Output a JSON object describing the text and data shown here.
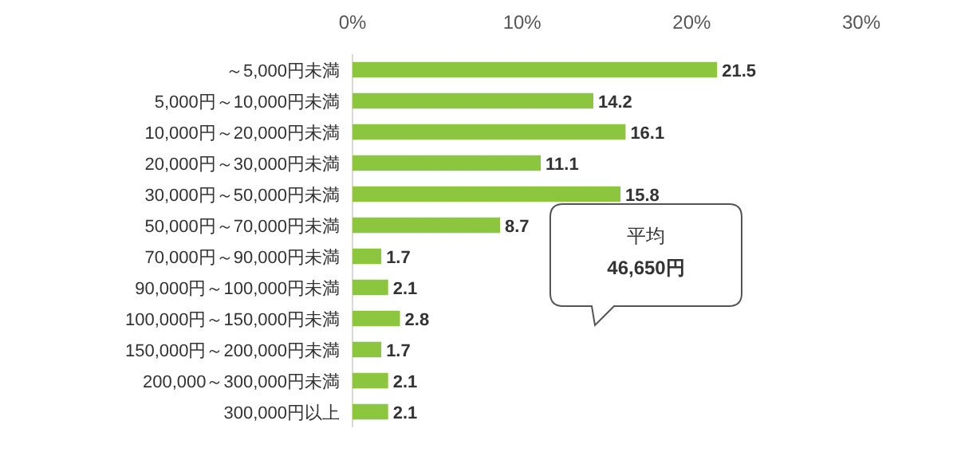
{
  "chart_data": {
    "type": "bar",
    "orientation": "horizontal",
    "categories": [
      "～5,000円未満",
      "5,000円～10,000円未満",
      "10,000円～20,000円未満",
      "20,000円～30,000円未満",
      "30,000円～50,000円未満",
      "50,000円～70,000円未満",
      "70,000円～90,000円未満",
      "90,000円～100,000円未満",
      "100,000円～150,000円未満",
      "150,000円～200,000円未満",
      "200,000～300,000円未満",
      "300,000円以上"
    ],
    "values": [
      21.5,
      14.2,
      16.1,
      11.1,
      15.8,
      8.7,
      1.7,
      2.1,
      2.8,
      1.7,
      2.1,
      2.1
    ],
    "color": "#8cc63e",
    "xlim": [
      0,
      30
    ],
    "xticks": [
      {
        "value": 0,
        "label": "0%"
      },
      {
        "value": 10,
        "label": "10%"
      },
      {
        "value": 20,
        "label": "20%"
      },
      {
        "value": 30,
        "label": "30%"
      }
    ],
    "data_labels": true,
    "grid": false,
    "annotations": [
      "平均\n46,650円"
    ]
  }
}
